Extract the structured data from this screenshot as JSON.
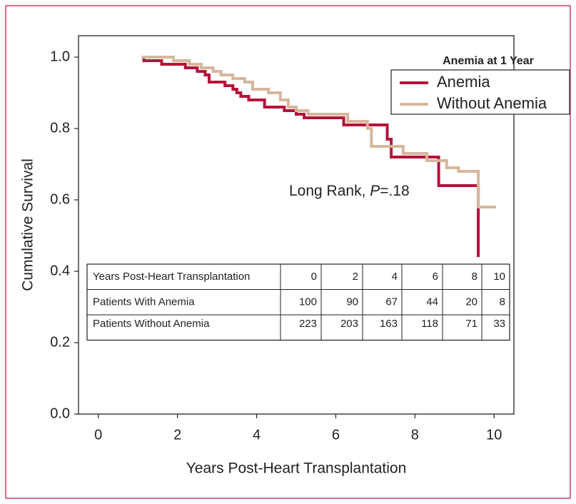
{
  "chart_data": {
    "type": "step",
    "xlabel": "Years Post-Heart Transplantation",
    "ylabel": "Cumulative Survival",
    "legend_title": "Anemia at 1 Year",
    "annotation": [
      "Long Rank, ",
      "P",
      "=.18"
    ],
    "xlim": [
      -0.5,
      10.5
    ],
    "xticks": [
      0,
      2,
      4,
      6,
      8,
      10
    ],
    "ylim": [
      0,
      1.06
    ],
    "yticks": [
      {
        "value": 0,
        "label": "0.0"
      },
      0.2,
      0.4,
      0.6,
      0.8,
      {
        "value": 1,
        "label": "1.0"
      }
    ],
    "series": [
      {
        "name": "Anemia",
        "color": "#b5123a",
        "x": [
          1.1,
          1.15,
          1.6,
          2.2,
          2.5,
          2.7,
          2.8,
          3.2,
          3.4,
          3.5,
          3.6,
          3.8,
          4.2,
          4.7,
          5.0,
          5.2,
          6.2,
          7.3,
          7.4,
          8.6,
          9.6
        ],
        "values": [
          1.0,
          0.99,
          0.98,
          0.97,
          0.96,
          0.95,
          0.93,
          0.92,
          0.91,
          0.9,
          0.89,
          0.88,
          0.86,
          0.85,
          0.84,
          0.83,
          0.81,
          0.77,
          0.72,
          0.64,
          0.44
        ]
      },
      {
        "name": "Without Anemia",
        "color": "#d6b79c",
        "x": [
          1.1,
          1.9,
          2.3,
          2.6,
          2.9,
          3.1,
          3.4,
          3.7,
          3.9,
          4.3,
          4.6,
          4.8,
          5.0,
          5.3,
          6.3,
          6.8,
          6.9,
          7.7,
          8.3,
          8.8,
          9.1,
          9.6,
          10.05
        ],
        "values": [
          1.0,
          0.99,
          0.98,
          0.97,
          0.96,
          0.95,
          0.94,
          0.93,
          0.91,
          0.9,
          0.88,
          0.86,
          0.85,
          0.84,
          0.82,
          0.8,
          0.75,
          0.73,
          0.71,
          0.69,
          0.68,
          0.58,
          0.58
        ]
      }
    ],
    "table": {
      "rows": [
        {
          "label": "Years Post-Heart Transplantation",
          "cells": [
            0,
            2,
            4,
            6,
            8,
            10
          ]
        },
        {
          "label": "Patients With Anemia",
          "cells": [
            100,
            90,
            67,
            44,
            20,
            8
          ]
        },
        {
          "label": "Patients Without Anemia",
          "cells": [
            223,
            203,
            163,
            118,
            71,
            33
          ]
        }
      ]
    }
  }
}
